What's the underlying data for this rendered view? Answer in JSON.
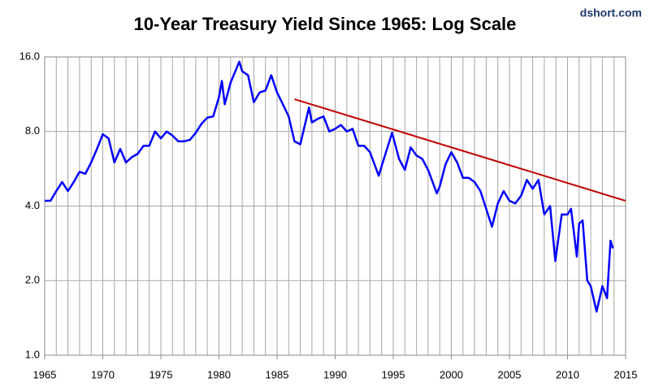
{
  "chart_data": {
    "type": "line",
    "title": "10-Year Treasury Yield Since 1965: Log Scale",
    "source": "dshort.com",
    "log_y": true,
    "grid": true,
    "xminor_step": 1,
    "xlim": [
      1965,
      2015
    ],
    "xticks": [
      1965,
      1970,
      1975,
      1980,
      1985,
      1990,
      1995,
      2000,
      2005,
      2010,
      2015
    ],
    "ylim": [
      1,
      16
    ],
    "yticks": [
      {
        "value": 1,
        "label": "1.0"
      },
      {
        "value": 2,
        "label": "2.0"
      },
      {
        "value": 4,
        "label": "4.0"
      },
      {
        "value": 8,
        "label": "8.0"
      },
      {
        "value": 16,
        "label": "16.0"
      }
    ],
    "x": [
      1965.0,
      1965.5,
      1966.0,
      1966.5,
      1967.0,
      1967.5,
      1968.0,
      1968.5,
      1969.0,
      1969.5,
      1970.0,
      1970.5,
      1971.0,
      1971.5,
      1972.0,
      1972.5,
      1973.0,
      1973.5,
      1974.0,
      1974.5,
      1975.0,
      1975.5,
      1976.0,
      1976.5,
      1977.0,
      1977.5,
      1978.0,
      1978.5,
      1979.0,
      1979.5,
      1980.0,
      1980.25,
      1980.5,
      1981.0,
      1981.75,
      1982.0,
      1982.5,
      1983.0,
      1983.5,
      1984.0,
      1984.5,
      1985.0,
      1985.5,
      1986.0,
      1986.5,
      1987.0,
      1987.75,
      1988.0,
      1988.5,
      1989.0,
      1989.5,
      1990.0,
      1990.5,
      1991.0,
      1991.5,
      1992.0,
      1992.5,
      1993.0,
      1993.75,
      1994.0,
      1994.9,
      1995.5,
      1996.0,
      1996.5,
      1997.0,
      1997.5,
      1998.0,
      1998.75,
      1999.0,
      1999.5,
      2000.0,
      2000.5,
      2001.0,
      2001.5,
      2002.0,
      2002.5,
      2003.0,
      2003.5,
      2004.0,
      2004.5,
      2005.0,
      2005.5,
      2006.0,
      2006.5,
      2007.0,
      2007.5,
      2008.0,
      2008.5,
      2008.95,
      2009.5,
      2010.0,
      2010.3,
      2010.8,
      2011.0,
      2011.3,
      2011.7,
      2012.0,
      2012.5,
      2013.0,
      2013.4,
      2013.7,
      2013.9
    ],
    "series": [
      {
        "color": "#0000ff",
        "values": [
          4.2,
          4.2,
          4.6,
          5.0,
          4.6,
          5.0,
          5.5,
          5.4,
          6.0,
          6.8,
          7.8,
          7.5,
          6.0,
          6.8,
          6.0,
          6.3,
          6.5,
          7.0,
          7.0,
          8.0,
          7.5,
          8.0,
          7.7,
          7.3,
          7.3,
          7.4,
          7.9,
          8.6,
          9.1,
          9.2,
          11.0,
          12.8,
          10.3,
          12.6,
          15.3,
          14.0,
          13.5,
          10.5,
          11.5,
          11.7,
          13.5,
          11.5,
          10.3,
          9.2,
          7.3,
          7.1,
          10.0,
          8.7,
          9.0,
          9.2,
          8.0,
          8.2,
          8.5,
          8.0,
          8.2,
          7.0,
          7.0,
          6.6,
          5.3,
          5.8,
          7.9,
          6.2,
          5.6,
          6.9,
          6.4,
          6.2,
          5.6,
          4.5,
          4.8,
          5.9,
          6.6,
          6.0,
          5.2,
          5.2,
          5.0,
          4.6,
          3.9,
          3.3,
          4.1,
          4.6,
          4.2,
          4.1,
          4.4,
          5.1,
          4.7,
          5.1,
          3.7,
          4.0,
          2.4,
          3.7,
          3.7,
          3.9,
          2.5,
          3.4,
          3.5,
          2.0,
          1.9,
          1.5,
          1.9,
          1.7,
          2.9,
          2.7
        ]
      }
    ],
    "trendline": {
      "color": "#c00000",
      "x": [
        1986.5,
        2015
      ],
      "values": [
        10.8,
        4.2
      ]
    }
  }
}
